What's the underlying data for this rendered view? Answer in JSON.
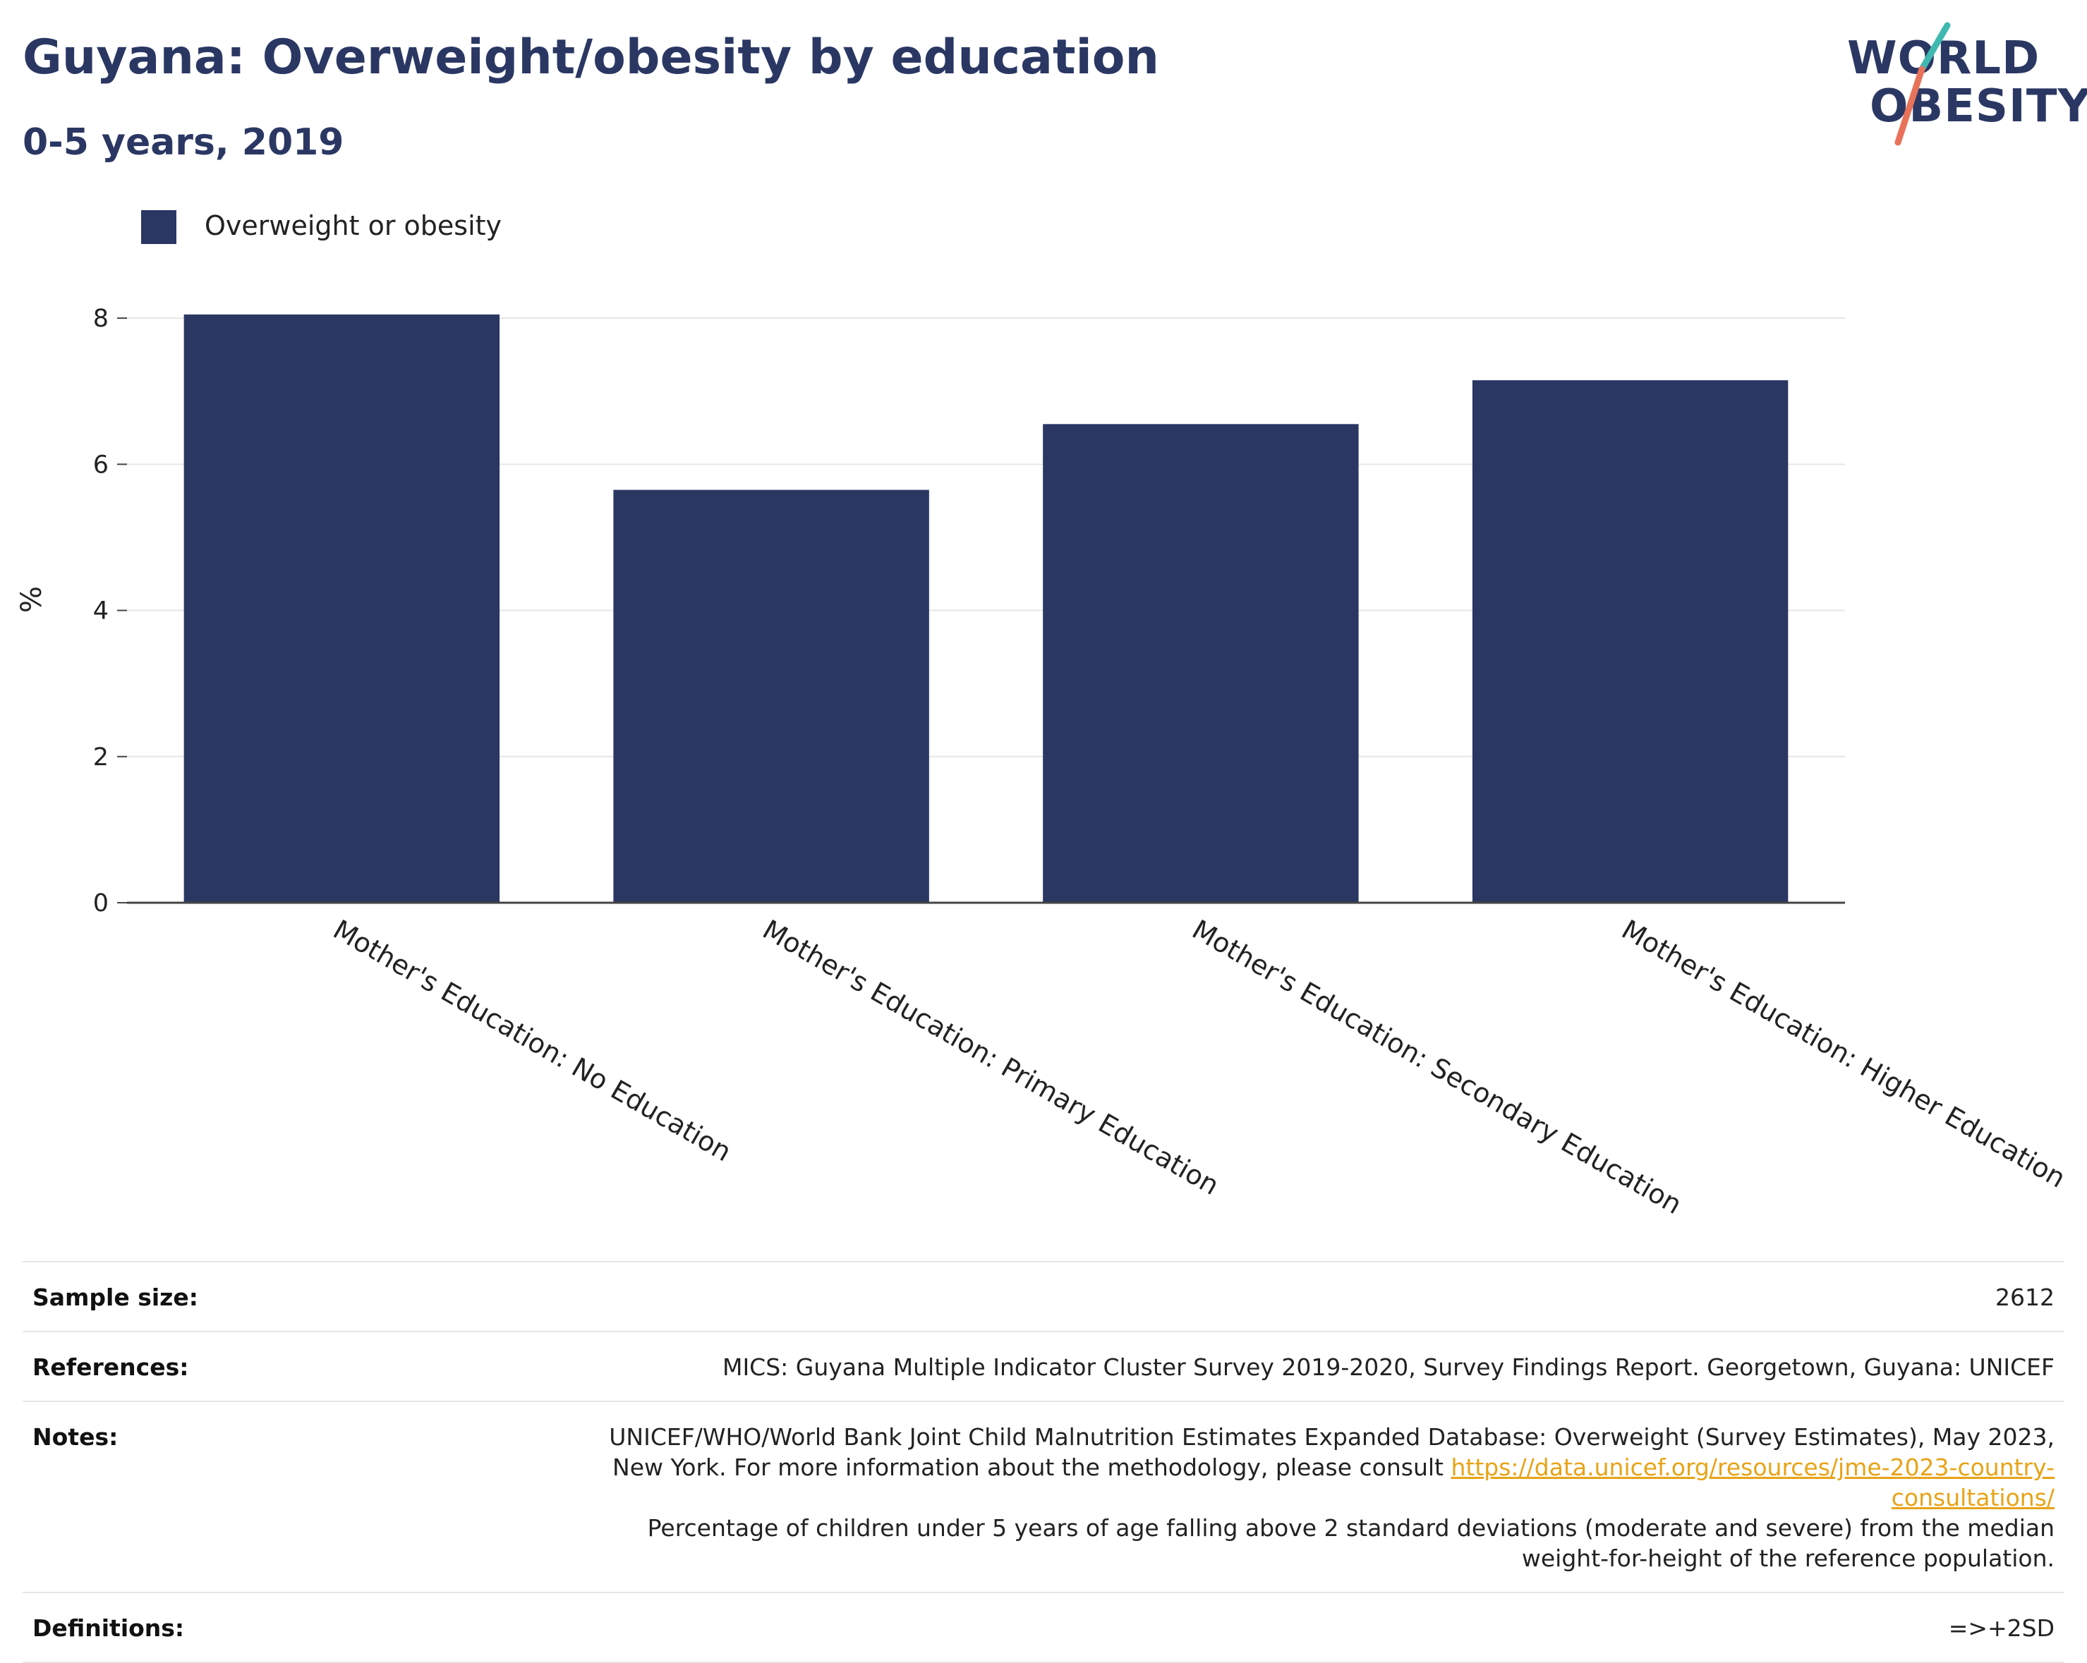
{
  "header": {
    "title": "Guyana: Overweight/obesity by education",
    "subtitle": "0-5 years, 2019"
  },
  "logo": {
    "line1": "WORLD",
    "line2": "OBESITY"
  },
  "colors": {
    "bar": "#2b3763",
    "grid": "#e6e6e6",
    "axis": "#444444",
    "title": "#2b3763",
    "link": "#e8a317",
    "logo_teal": "#3fb8af",
    "logo_coral": "#e8735a"
  },
  "legend": {
    "label": "Overweight or obesity"
  },
  "chart_data": {
    "type": "bar",
    "categories": [
      "Mother's Education: No Education",
      "Mother's Education: Primary Education",
      "Mother's Education: Secondary Education",
      "Mother's Education: Higher Education"
    ],
    "series": [
      {
        "name": "Overweight or obesity",
        "values": [
          8.05,
          5.65,
          6.55,
          7.15
        ]
      }
    ],
    "ylabel": "%",
    "ylim": [
      0,
      8.3
    ],
    "yticks": [
      0,
      2,
      4,
      6,
      8
    ],
    "grid": true,
    "legend_position": "top-left"
  },
  "info": {
    "sample_size_label": "Sample size:",
    "sample_size_value": "2612",
    "references_label": "References:",
    "references_value": "MICS: Guyana Multiple Indicator Cluster Survey 2019-2020, Survey Findings Report. Georgetown, Guyana: UNICEF",
    "notes_label": "Notes:",
    "notes_text_1": "UNICEF/WHO/World Bank Joint Child Malnutrition Estimates Expanded Database: Overweight (Survey Estimates), May 2023, New York. For more information about the methodology, please consult",
    "notes_link": "https://data.unicef.org/resources/jme-2023-country-consultations/",
    "notes_text_2": "Percentage of children under 5 years of age falling above 2 standard deviations (moderate and severe) from the median weight-for-height of the reference population.",
    "definitions_label": "Definitions:",
    "definitions_value": "=>+2SD"
  }
}
